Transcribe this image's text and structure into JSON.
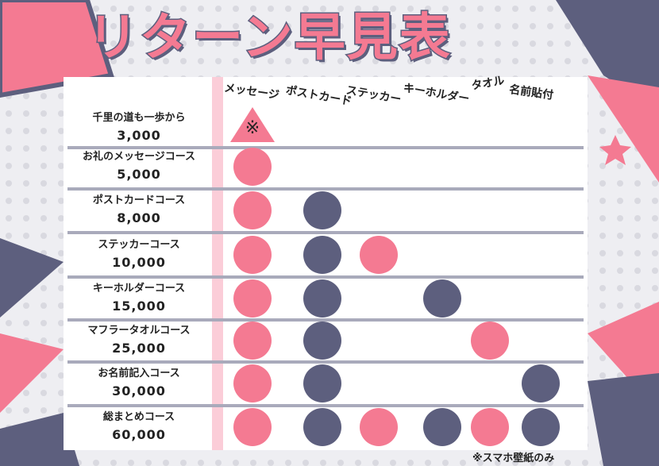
{
  "title": "リターン早見表",
  "colors": {
    "pink": "#f47a92",
    "navy": "#5d5f7e"
  },
  "columns": [
    {
      "label": "メッセージ",
      "color": "pink"
    },
    {
      "label": "ポストカード",
      "color": "navy"
    },
    {
      "label": "ステッカー",
      "color": "pink"
    },
    {
      "label": "キーホルダー",
      "color": "navy"
    },
    {
      "label": "タオル",
      "color": "pink"
    },
    {
      "label": "名前貼付",
      "color": "navy"
    }
  ],
  "rows": [
    {
      "name": "千里の道も一歩から",
      "price": "3,000",
      "includes": [
        "triangle",
        null,
        null,
        null,
        null,
        null
      ],
      "triangle_note": "※"
    },
    {
      "name": "お礼のメッセージコース",
      "price": "5,000",
      "includes": [
        true,
        false,
        false,
        false,
        false,
        false
      ]
    },
    {
      "name": "ポストカードコース",
      "price": "8,000",
      "includes": [
        true,
        true,
        false,
        false,
        false,
        false
      ]
    },
    {
      "name": "ステッカーコース",
      "price": "10,000",
      "includes": [
        true,
        true,
        true,
        false,
        false,
        false
      ]
    },
    {
      "name": "キーホルダーコース",
      "price": "15,000",
      "includes": [
        true,
        true,
        false,
        true,
        false,
        false
      ]
    },
    {
      "name": "マフラータオルコース",
      "price": "25,000",
      "includes": [
        true,
        true,
        false,
        false,
        true,
        false
      ]
    },
    {
      "name": "お名前記入コース",
      "price": "30,000",
      "includes": [
        true,
        true,
        false,
        false,
        false,
        true
      ]
    },
    {
      "name": "総まとめコース",
      "price": "60,000",
      "includes": [
        true,
        true,
        true,
        true,
        true,
        true
      ]
    }
  ],
  "footnote": "※スマホ壁紙のみ"
}
